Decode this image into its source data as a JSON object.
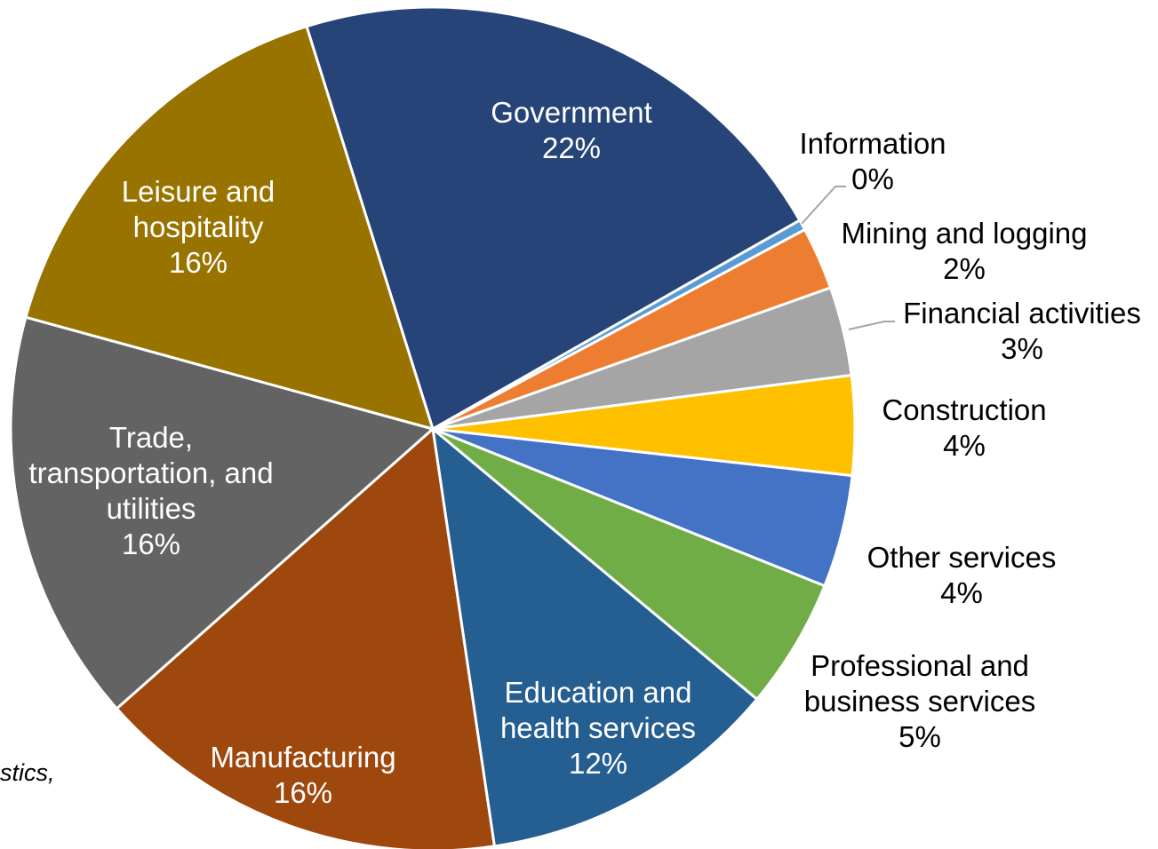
{
  "chart_data": {
    "type": "pie",
    "categories": [
      "Government",
      "Information",
      "Mining and logging",
      "Financial activities",
      "Construction",
      "Other services",
      "Professional and business services",
      "Education and health services",
      "Manufacturing",
      "Trade, transportation, and utilities",
      "Leisure and hospitality"
    ],
    "values": [
      21.6,
      0.4,
      2.4,
      3.4,
      3.8,
      4.3,
      5.0,
      11.6,
      15.8,
      15.8,
      15.9
    ],
    "value_labels": [
      "22%",
      "0%",
      "2%",
      "3%",
      "4%",
      "4%",
      "5%",
      "12%",
      "16%",
      "16%",
      "16%"
    ],
    "colors": [
      "#264478",
      "#5b9bd5",
      "#ed7d31",
      "#a5a5a5",
      "#ffc000",
      "#4472c4",
      "#70ad47",
      "#255e91",
      "#9e480e",
      "#636363",
      "#997300"
    ],
    "note": "stics,"
  }
}
